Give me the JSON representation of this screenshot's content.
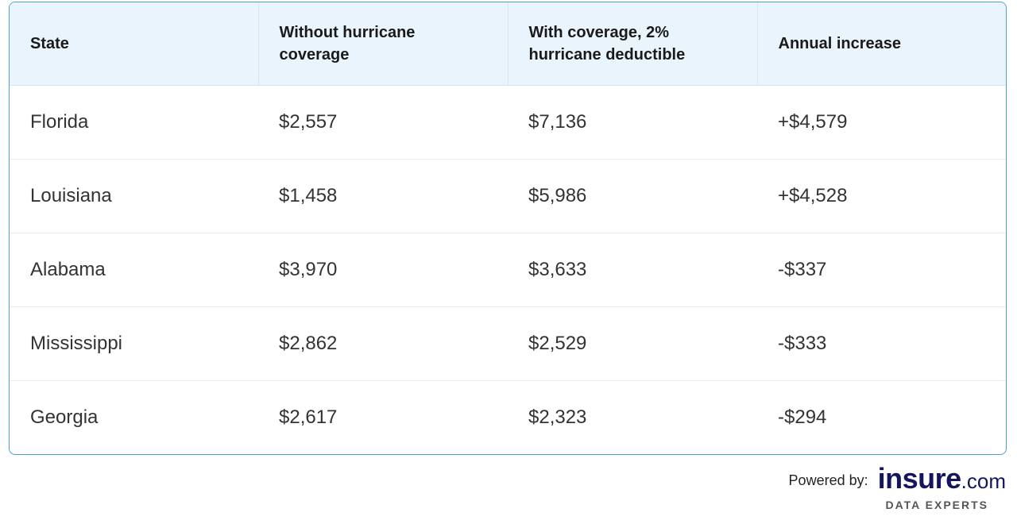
{
  "table": {
    "headers": [
      "State",
      "Without hurricane coverage",
      "With coverage, 2% hurricane deductible",
      "Annual increase"
    ],
    "rows": [
      [
        "Florida",
        "$2,557",
        "$7,136",
        "+$4,579"
      ],
      [
        "Louisiana",
        "$1,458",
        "$5,986",
        "+$4,528"
      ],
      [
        "Alabama",
        "$3,970",
        "$3,633",
        "-$337"
      ],
      [
        "Mississippi",
        "$2,862",
        "$2,529",
        "-$333"
      ],
      [
        "Georgia",
        "$2,617",
        "$2,323",
        "-$294"
      ]
    ]
  },
  "footer": {
    "powered_by": "Powered by:",
    "logo_main": "insure",
    "logo_suffix": ".com",
    "tagline": "DATA EXPERTS"
  },
  "colors": {
    "header_bg": "#eaf4fc",
    "border": "#4a9fd4",
    "brand_navy": "#14155e"
  }
}
